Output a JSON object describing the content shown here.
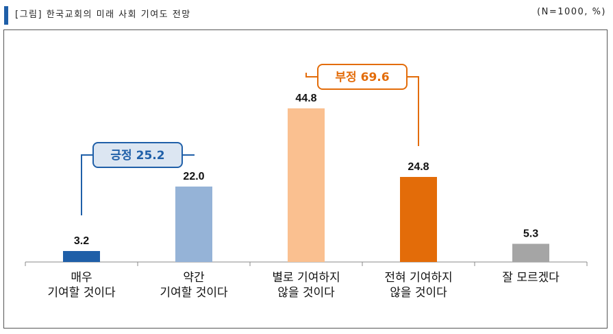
{
  "header": {
    "title": "[그림] 한국교회의 미래 사회 기여도 전망",
    "note": "(N=1000, %)"
  },
  "chart_data": {
    "type": "bar",
    "categories": [
      [
        "매우",
        "기여할 것이다"
      ],
      [
        "약간",
        "기여할 것이다"
      ],
      [
        "별로 기여하지",
        "않을 것이다"
      ],
      [
        "전혀 기여하지",
        "않을 것이다"
      ],
      [
        "잘 모르겠다"
      ]
    ],
    "values": [
      3.2,
      22.0,
      44.8,
      24.8,
      5.3
    ],
    "value_labels": [
      "3.2",
      "22.0",
      "44.8",
      "24.8",
      "5.3"
    ],
    "colors": [
      "#1f5fa8",
      "#95b3d7",
      "#fac090",
      "#e36c09",
      "#a5a5a5"
    ],
    "ylim": [
      0,
      50
    ],
    "annotations": [
      {
        "label": "긍정 25.2",
        "spans": [
          0,
          1
        ],
        "color": "#1f5fa8",
        "fill": "#dce6f2"
      },
      {
        "label": "부정 69.6",
        "spans": [
          2,
          3
        ],
        "color": "#e36c09",
        "fill": "#ffffff"
      }
    ]
  }
}
